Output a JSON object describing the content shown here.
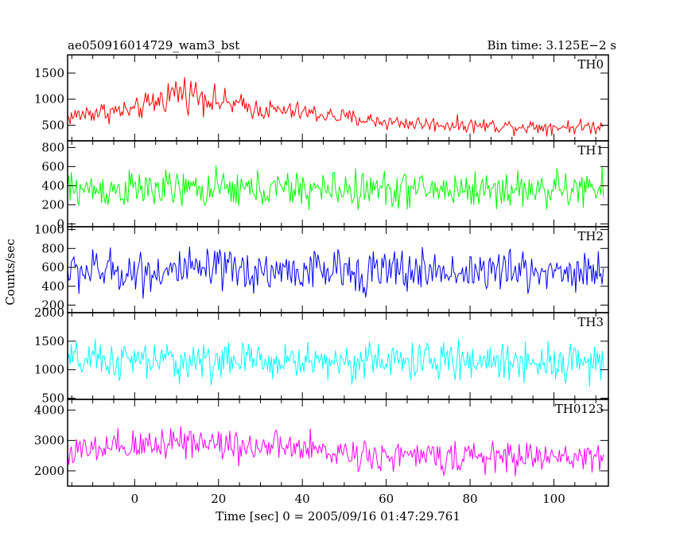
{
  "chart_data": {
    "type": "line",
    "title": "ae050916014729_wam3_bst",
    "subtitle": "Bin time: 3.125E−2 s",
    "xlabel": "Time [sec] 0 = 2005/09/16 01:47:29.761",
    "ylabel": "Counts/sec",
    "xlim": [
      -16,
      113
    ],
    "x_ticks": [
      0,
      20,
      40,
      60,
      80,
      100
    ],
    "data_x_range": [
      -16,
      112
    ],
    "grid": false,
    "panels": [
      {
        "name": "TH0",
        "color": "#ff0000",
        "ylim": [
          200,
          1850
        ],
        "y_ticks": [
          500,
          1000,
          1500
        ],
        "x": [
          -16,
          -10,
          0,
          5,
          10,
          15,
          20,
          30,
          40,
          50,
          60,
          70,
          80,
          90,
          100,
          112
        ],
        "y_mean": [
          650,
          750,
          780,
          950,
          1150,
          1100,
          950,
          800,
          750,
          650,
          560,
          520,
          500,
          480,
          470,
          470
        ],
        "y_spread": [
          250,
          320,
          300,
          420,
          520,
          480,
          380,
          300,
          270,
          250,
          230,
          220,
          210,
          210,
          210,
          210
        ]
      },
      {
        "name": "TH1",
        "color": "#00ff00",
        "ylim": [
          -30,
          870
        ],
        "y_ticks": [
          0,
          200,
          400,
          600,
          800
        ],
        "x": [
          -16,
          112
        ],
        "y_mean": [
          360,
          360
        ],
        "y_spread": [
          290,
          290
        ]
      },
      {
        "name": "TH2",
        "color": "#0000ff",
        "ylim": [
          120,
          1030
        ],
        "y_ticks": [
          200,
          400,
          600,
          800,
          1000
        ],
        "x": [
          -16,
          112
        ],
        "y_mean": [
          560,
          560
        ],
        "y_spread": [
          340,
          340
        ]
      },
      {
        "name": "TH3",
        "color": "#00ffff",
        "ylim": [
          480,
          2000
        ],
        "y_ticks": [
          500,
          1000,
          1500,
          2000
        ],
        "x": [
          -16,
          112
        ],
        "y_mean": [
          1150,
          1150
        ],
        "y_spread": [
          500,
          500
        ]
      },
      {
        "name": "TH0123",
        "color": "#ff00ff",
        "ylim": [
          1500,
          4350
        ],
        "y_ticks": [
          2000,
          3000,
          4000
        ],
        "x": [
          -16,
          0,
          10,
          20,
          40,
          60,
          80,
          100,
          112
        ],
        "y_mean": [
          2600,
          2750,
          3050,
          2900,
          2700,
          2500,
          2450,
          2450,
          2450
        ],
        "y_spread": [
          750,
          850,
          950,
          850,
          780,
          720,
          700,
          700,
          700
        ]
      }
    ]
  }
}
